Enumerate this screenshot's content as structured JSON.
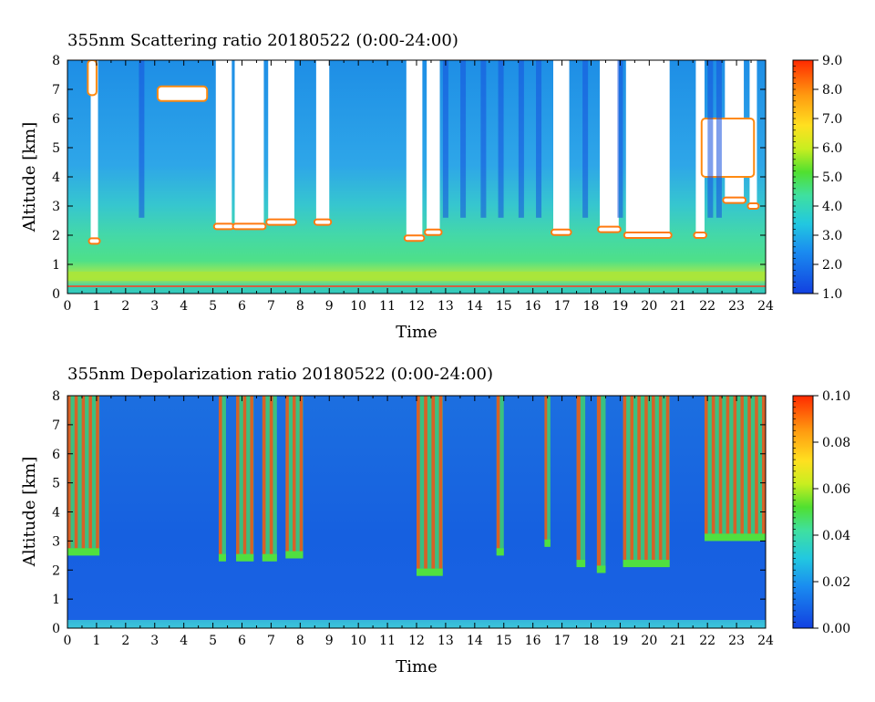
{
  "chart_data": [
    {
      "type": "heatmap",
      "title": "355nm Scattering ratio  20180522 (0:00-24:00)",
      "xlabel": "Time",
      "ylabel": "Altitude [km]",
      "x_ticks": [
        "0",
        "1",
        "2",
        "3",
        "4",
        "5",
        "6",
        "7",
        "8",
        "9",
        "10",
        "11",
        "12",
        "13",
        "14",
        "15",
        "16",
        "17",
        "18",
        "19",
        "20",
        "21",
        "22",
        "23",
        "24"
      ],
      "y_ticks": [
        "0",
        "1",
        "2",
        "3",
        "4",
        "5",
        "6",
        "7",
        "8"
      ],
      "xlim": [
        0,
        24
      ],
      "ylim": [
        0,
        8
      ],
      "colorbar": {
        "range": [
          1.0,
          9.0
        ],
        "tick_labels": [
          "1.0",
          "2.0",
          "3.0",
          "4.0",
          "5.0",
          "6.0",
          "7.0",
          "8.0",
          "9.0"
        ]
      },
      "cloud_gaps": [
        {
          "x0": 0.8,
          "x1": 1.05,
          "base": 1.8
        },
        {
          "x0": 5.1,
          "x1": 5.65,
          "base": 2.3
        },
        {
          "x0": 5.75,
          "x1": 6.75,
          "base": 2.3
        },
        {
          "x0": 6.9,
          "x1": 7.8,
          "base": 2.45
        },
        {
          "x0": 8.55,
          "x1": 9.0,
          "base": 2.45
        },
        {
          "x0": 11.65,
          "x1": 12.2,
          "base": 1.9
        },
        {
          "x0": 12.35,
          "x1": 12.8,
          "base": 2.1
        },
        {
          "x0": 16.7,
          "x1": 17.25,
          "base": 2.1
        },
        {
          "x0": 18.3,
          "x1": 18.95,
          "base": 2.2
        },
        {
          "x0": 19.2,
          "x1": 20.7,
          "base": 2.0
        },
        {
          "x0": 21.6,
          "x1": 21.9,
          "base": 2.0
        },
        {
          "x0": 22.6,
          "x1": 23.25,
          "base": 3.2
        },
        {
          "x0": 23.45,
          "x1": 23.7,
          "base": 3.0
        }
      ],
      "elevated_clouds": [
        {
          "x0": 3.1,
          "x1": 4.8,
          "y0": 6.6,
          "y1": 7.1
        },
        {
          "x0": 0.7,
          "x1": 1.0,
          "y0": 6.8,
          "y1": 8.0
        },
        {
          "x0": 21.8,
          "x1": 23.6,
          "y0": 4.0,
          "y1": 6.0
        }
      ]
    },
    {
      "type": "heatmap",
      "title": "355nm Depolarization ratio  20180522 (0:00-24:00)",
      "xlabel": "Time",
      "ylabel": "Altitude [km]",
      "x_ticks": [
        "0",
        "1",
        "2",
        "3",
        "4",
        "5",
        "6",
        "7",
        "8",
        "9",
        "10",
        "11",
        "12",
        "13",
        "14",
        "15",
        "16",
        "17",
        "18",
        "19",
        "20",
        "21",
        "22",
        "23",
        "24"
      ],
      "y_ticks": [
        "0",
        "1",
        "2",
        "3",
        "4",
        "5",
        "6",
        "7",
        "8"
      ],
      "xlim": [
        0,
        24
      ],
      "ylim": [
        0,
        8
      ],
      "colorbar": {
        "range": [
          0.0,
          0.1
        ],
        "tick_labels": [
          "0.00",
          "0.02",
          "0.04",
          "0.06",
          "0.08",
          "0.10"
        ]
      },
      "high_depol_bands": [
        {
          "x0": 0.0,
          "x1": 1.1,
          "base": 2.5
        },
        {
          "x0": 5.2,
          "x1": 5.45,
          "base": 2.3
        },
        {
          "x0": 5.8,
          "x1": 6.4,
          "base": 2.3
        },
        {
          "x0": 6.7,
          "x1": 7.2,
          "base": 2.3
        },
        {
          "x0": 7.5,
          "x1": 8.1,
          "base": 2.4
        },
        {
          "x0": 12.0,
          "x1": 12.9,
          "base": 1.8
        },
        {
          "x0": 14.75,
          "x1": 15.0,
          "base": 2.5
        },
        {
          "x0": 16.4,
          "x1": 16.6,
          "base": 2.8
        },
        {
          "x0": 17.5,
          "x1": 17.8,
          "base": 2.1
        },
        {
          "x0": 18.2,
          "x1": 18.5,
          "base": 1.9
        },
        {
          "x0": 19.1,
          "x1": 20.7,
          "base": 2.1
        },
        {
          "x0": 21.9,
          "x1": 24.0,
          "base": 3.0
        }
      ]
    }
  ]
}
